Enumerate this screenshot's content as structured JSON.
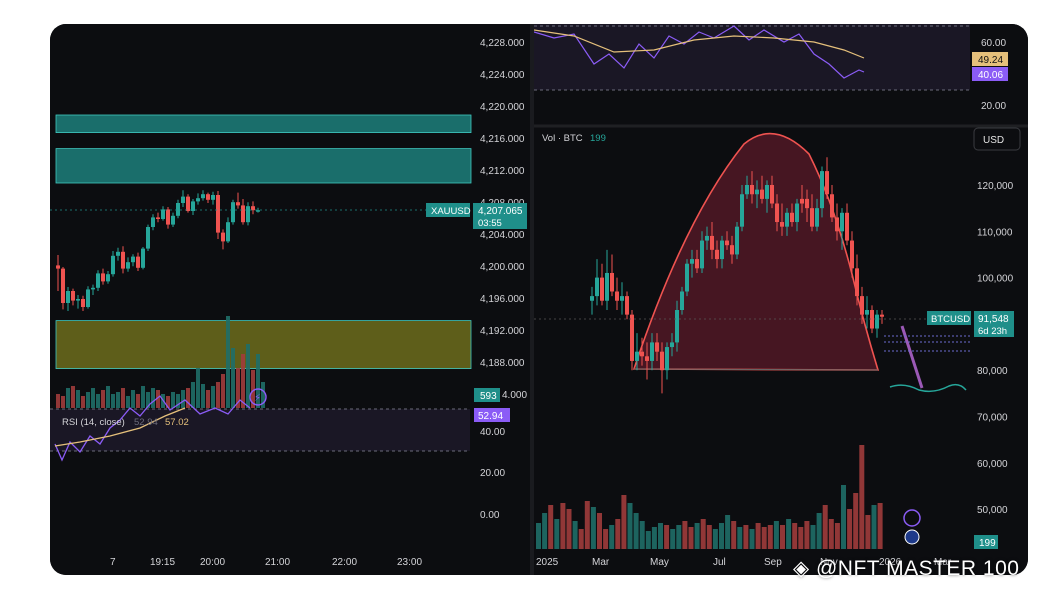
{
  "left_chart": {
    "price_ticks": [
      "4,228.000",
      "4,224.000",
      "4,220.000",
      "4,216.000",
      "4,212.000",
      "4,208.000",
      "4,204.000",
      "4,200.000",
      "4,196.000",
      "4,192.000",
      "4,188.000",
      "4,184.000"
    ],
    "price_values": [
      4228,
      4224,
      4220,
      4216,
      4212,
      4208,
      4204,
      4200,
      4196,
      4192,
      4188,
      4184
    ],
    "symbol_label": "XAUUSD",
    "current_price": "4,207.065",
    "countdown": "03:55",
    "volume_badge": "593",
    "rsi_badge": "52.94",
    "rsi_label": "RSI (14, close)",
    "rsi_value_a": "52.94",
    "rsi_value_b": "57.02",
    "rsi_ticks": [
      "40.00",
      "20.00",
      "0.00"
    ],
    "time_ticks": [
      "7",
      "19:15",
      "20:00",
      "21:00",
      "22:00",
      "23:00"
    ],
    "zones": [
      {
        "name": "upper-zone-1",
        "from": 4216.8,
        "to": 4219,
        "color": "#1f8f8a"
      },
      {
        "name": "upper-zone-2",
        "from": 4210.5,
        "to": 4214.8,
        "color": "#1f8f8a"
      },
      {
        "name": "demand-zone",
        "from": 4187.3,
        "to": 4193.3,
        "color": "#7a7a1e"
      }
    ]
  },
  "right_chart": {
    "rsi_ticks": [
      "60.00",
      "20.00"
    ],
    "rsi_badge_a": "49.24",
    "rsi_badge_b": "40.06",
    "vol_label": "Vol · BTC",
    "vol_value": "199",
    "currency": "USD",
    "price_ticks": [
      "120,000",
      "110,000",
      "100,000",
      "90,000",
      "80,000",
      "70,000",
      "60,000",
      "50,000"
    ],
    "price_values": [
      120000,
      110000,
      100000,
      90000,
      80000,
      70000,
      60000,
      50000
    ],
    "symbol_label": "BTCUSD",
    "current_price": "91,548",
    "countdown": "6d 23h",
    "volume_badge": "199",
    "time_ticks": [
      "2025",
      "Mar",
      "May",
      "Jul",
      "Sep",
      "Nov",
      "2026",
      "Mar"
    ]
  },
  "watermark": "◈ @NFT MASTER 100",
  "colors": {
    "up": "#26a69a",
    "down": "#ef5350",
    "rsi": "#8b5cf6",
    "rsi_ma": "#e5c07b",
    "bull": "#1f8f8a"
  }
}
